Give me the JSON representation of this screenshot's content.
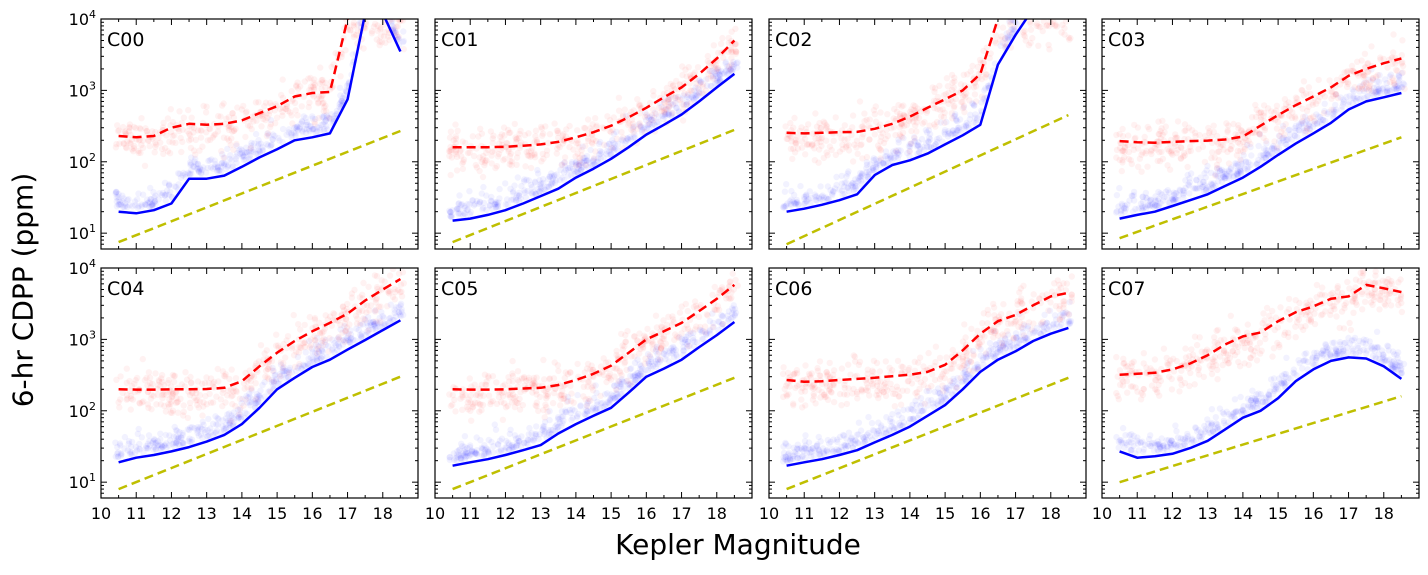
{
  "figure": {
    "ylabel": "6-hr CDPP (ppm)",
    "xlabel": "Kepler Magnitude"
  },
  "colors": {
    "median_line": "#0000ff",
    "upper_line": "#ff0000",
    "reference_line": "#bfbf00",
    "low_scatter": "#0000ff",
    "high_scatter": "#ff0000"
  },
  "chart_data": [
    {
      "type": "line",
      "title": "C00",
      "xlim": [
        10,
        19
      ],
      "ylim": [
        6,
        10000
      ],
      "yscale": "log",
      "xticks": [
        "10",
        "11",
        "12",
        "13",
        "14",
        "15",
        "16",
        "17",
        "18"
      ],
      "yticks": [
        "10^1",
        "10^2",
        "10^3",
        "10^4"
      ],
      "series": [
        {
          "style": "solid-blue",
          "x": [
            10.5,
            11,
            11.5,
            12,
            12.5,
            13,
            13.5,
            14,
            14.5,
            15,
            15.5,
            16,
            16.5,
            17,
            17.5,
            18,
            18.5
          ],
          "y": [
            20,
            19,
            21,
            26,
            58,
            58,
            64,
            85,
            115,
            150,
            200,
            220,
            250,
            750,
            12000,
            12000,
            3500
          ]
        },
        {
          "style": "dashed-red",
          "x": [
            10.5,
            11,
            11.5,
            12,
            12.5,
            13,
            13.5,
            14,
            14.5,
            15,
            15.5,
            16,
            16.5,
            17
          ],
          "y": [
            230,
            220,
            230,
            300,
            340,
            330,
            340,
            380,
            480,
            600,
            820,
            920,
            950,
            10000
          ]
        },
        {
          "style": "dashed-yellow",
          "x": [
            10.5,
            18.5
          ],
          "y": [
            7.5,
            270
          ]
        }
      ]
    },
    {
      "type": "line",
      "title": "C01",
      "xlim": [
        10,
        19
      ],
      "ylim": [
        6,
        10000
      ],
      "yscale": "log",
      "xticks": [
        "10",
        "11",
        "12",
        "13",
        "14",
        "15",
        "16",
        "17",
        "18"
      ],
      "yticks": [
        "10^1",
        "10^2",
        "10^3",
        "10^4"
      ],
      "series": [
        {
          "style": "solid-blue",
          "x": [
            10.5,
            11,
            11.5,
            12,
            12.5,
            13,
            13.5,
            14,
            14.5,
            15,
            15.5,
            16,
            16.5,
            17,
            17.5,
            18,
            18.5
          ],
          "y": [
            15,
            16,
            18,
            21,
            26,
            33,
            42,
            60,
            80,
            110,
            160,
            240,
            330,
            460,
            700,
            1100,
            1700
          ]
        },
        {
          "style": "dashed-red",
          "x": [
            10.5,
            11,
            11.5,
            12,
            12.5,
            13,
            13.5,
            14,
            14.5,
            15,
            15.5,
            16,
            16.5,
            17,
            17.5,
            18,
            18.5
          ],
          "y": [
            160,
            160,
            160,
            162,
            168,
            175,
            190,
            220,
            260,
            320,
            420,
            570,
            800,
            1100,
            1700,
            2800,
            5000
          ]
        },
        {
          "style": "dashed-yellow",
          "x": [
            10.5,
            18.5
          ],
          "y": [
            7.5,
            280
          ]
        }
      ]
    },
    {
      "type": "line",
      "title": "C02",
      "xlim": [
        10,
        19
      ],
      "ylim": [
        6,
        10000
      ],
      "yscale": "log",
      "xticks": [
        "10",
        "11",
        "12",
        "13",
        "14",
        "15",
        "16",
        "17",
        "18"
      ],
      "yticks": [
        "10^1",
        "10^2",
        "10^3",
        "10^4"
      ],
      "series": [
        {
          "style": "solid-blue",
          "x": [
            10.5,
            11,
            11.5,
            12,
            12.5,
            13,
            13.5,
            14,
            14.5,
            15,
            15.5,
            16,
            16.5,
            17,
            17.5
          ],
          "y": [
            20,
            22,
            25,
            29,
            35,
            65,
            90,
            105,
            130,
            175,
            235,
            330,
            2300,
            6000,
            14000
          ]
        },
        {
          "style": "dashed-red",
          "x": [
            10.5,
            11,
            11.5,
            12,
            12.5,
            13,
            13.5,
            14,
            14.5,
            15,
            15.5,
            16,
            16.5
          ],
          "y": [
            255,
            250,
            255,
            260,
            262,
            290,
            340,
            430,
            570,
            750,
            1000,
            1700,
            10000
          ]
        },
        {
          "style": "dashed-yellow",
          "x": [
            10.5,
            18.5
          ],
          "y": [
            7,
            450
          ]
        }
      ]
    },
    {
      "type": "line",
      "title": "C03",
      "xlim": [
        10,
        19
      ],
      "ylim": [
        6,
        10000
      ],
      "yscale": "log",
      "xticks": [
        "10",
        "11",
        "12",
        "13",
        "14",
        "15",
        "16",
        "17",
        "18"
      ],
      "yticks": [
        "10^1",
        "10^2",
        "10^3",
        "10^4"
      ],
      "series": [
        {
          "style": "solid-blue",
          "x": [
            10.5,
            11,
            11.5,
            12,
            12.5,
            13,
            13.5,
            14,
            14.5,
            15,
            15.5,
            16,
            16.5,
            17,
            17.5,
            18,
            18.5
          ],
          "y": [
            16,
            18,
            20,
            24,
            29,
            35,
            46,
            60,
            85,
            125,
            180,
            250,
            350,
            540,
            700,
            800,
            920
          ]
        },
        {
          "style": "dashed-red",
          "x": [
            10.5,
            11,
            11.5,
            12,
            12.5,
            13,
            13.5,
            14,
            14.5,
            15,
            15.5,
            16,
            16.5,
            17,
            17.5,
            18,
            18.5
          ],
          "y": [
            195,
            188,
            185,
            190,
            195,
            198,
            205,
            225,
            320,
            450,
            620,
            820,
            1100,
            1600,
            2000,
            2400,
            2800
          ]
        },
        {
          "style": "dashed-yellow",
          "x": [
            10.5,
            18.5
          ],
          "y": [
            8.5,
            220
          ]
        }
      ]
    },
    {
      "type": "line",
      "title": "C04",
      "xlim": [
        10,
        19
      ],
      "ylim": [
        6,
        10000
      ],
      "yscale": "log",
      "xticks": [
        "10",
        "11",
        "12",
        "13",
        "14",
        "15",
        "16",
        "17",
        "18"
      ],
      "yticks": [
        "10^1",
        "10^2",
        "10^3",
        "10^4"
      ],
      "series": [
        {
          "style": "solid-blue",
          "x": [
            10.5,
            11,
            11.5,
            12,
            12.5,
            13,
            13.5,
            14,
            14.5,
            15,
            15.5,
            16,
            16.5,
            17,
            17.5,
            18,
            18.5
          ],
          "y": [
            19,
            22,
            24,
            27,
            31,
            37,
            46,
            65,
            110,
            200,
            290,
            410,
            520,
            720,
            980,
            1350,
            1850
          ]
        },
        {
          "style": "dashed-red",
          "x": [
            10.5,
            11,
            11.5,
            12,
            12.5,
            13,
            13.5,
            14,
            14.5,
            15,
            15.5,
            16,
            16.5,
            17,
            17.5,
            18,
            18.5
          ],
          "y": [
            200,
            198,
            198,
            200,
            200,
            202,
            210,
            260,
            420,
            650,
            950,
            1300,
            1700,
            2300,
            3500,
            5000,
            7000
          ]
        },
        {
          "style": "dashed-yellow",
          "x": [
            10.5,
            18.5
          ],
          "y": [
            8,
            300
          ]
        }
      ]
    },
    {
      "type": "line",
      "title": "C05",
      "xlim": [
        10,
        19
      ],
      "ylim": [
        6,
        10000
      ],
      "yscale": "log",
      "xticks": [
        "10",
        "11",
        "12",
        "13",
        "14",
        "15",
        "16",
        "17",
        "18"
      ],
      "yticks": [
        "10^1",
        "10^2",
        "10^3",
        "10^4"
      ],
      "series": [
        {
          "style": "solid-blue",
          "x": [
            10.5,
            11,
            11.5,
            12,
            12.5,
            13,
            13.5,
            14,
            14.5,
            15,
            15.5,
            16,
            16.5,
            17,
            17.5,
            18,
            18.5
          ],
          "y": [
            17,
            19,
            21,
            24,
            28,
            33,
            48,
            65,
            85,
            110,
            180,
            300,
            390,
            520,
            780,
            1150,
            1750
          ]
        },
        {
          "style": "dashed-red",
          "x": [
            10.5,
            11,
            11.5,
            12,
            12.5,
            13,
            13.5,
            14,
            14.5,
            15,
            15.5,
            16,
            16.5,
            17,
            17.5,
            18,
            18.5
          ],
          "y": [
            200,
            198,
            198,
            200,
            205,
            210,
            230,
            270,
            330,
            430,
            650,
            1000,
            1300,
            1700,
            2500,
            3700,
            5800
          ]
        },
        {
          "style": "dashed-yellow",
          "x": [
            10.5,
            18.5
          ],
          "y": [
            8,
            290
          ]
        }
      ]
    },
    {
      "type": "line",
      "title": "C06",
      "xlim": [
        10,
        19
      ],
      "ylim": [
        6,
        10000
      ],
      "yscale": "log",
      "xticks": [
        "10",
        "11",
        "12",
        "13",
        "14",
        "15",
        "16",
        "17",
        "18"
      ],
      "yticks": [
        "10^1",
        "10^2",
        "10^3",
        "10^4"
      ],
      "series": [
        {
          "style": "solid-blue",
          "x": [
            10.5,
            11,
            11.5,
            12,
            12.5,
            13,
            13.5,
            14,
            14.5,
            15,
            15.5,
            16,
            16.5,
            17,
            17.5,
            18,
            18.5
          ],
          "y": [
            17,
            19,
            21,
            24,
            28,
            36,
            46,
            60,
            85,
            120,
            200,
            350,
            520,
            680,
            950,
            1200,
            1450
          ]
        },
        {
          "style": "dashed-red",
          "x": [
            10.5,
            11,
            11.5,
            12,
            12.5,
            13,
            13.5,
            14,
            14.5,
            15,
            15.5,
            16,
            16.5,
            17,
            17.5,
            18,
            18.5
          ],
          "y": [
            270,
            255,
            260,
            270,
            280,
            290,
            305,
            320,
            350,
            440,
            700,
            1200,
            1800,
            2200,
            3000,
            4000,
            4500
          ]
        },
        {
          "style": "dashed-yellow",
          "x": [
            10.5,
            18.5
          ],
          "y": [
            8,
            290
          ]
        }
      ]
    },
    {
      "type": "line",
      "title": "C07",
      "xlim": [
        10,
        19
      ],
      "ylim": [
        6,
        10000
      ],
      "yscale": "log",
      "xticks": [
        "10",
        "11",
        "12",
        "13",
        "14",
        "15",
        "16",
        "17",
        "18"
      ],
      "yticks": [
        "10^1",
        "10^2",
        "10^3",
        "10^4"
      ],
      "series": [
        {
          "style": "solid-blue",
          "x": [
            10.5,
            11,
            11.5,
            12,
            12.5,
            13,
            13.5,
            14,
            14.5,
            15,
            15.5,
            16,
            16.5,
            17,
            17.5,
            18,
            18.5
          ],
          "y": [
            27,
            22,
            23,
            25,
            30,
            38,
            55,
            80,
            100,
            150,
            260,
            380,
            500,
            560,
            540,
            420,
            280
          ]
        },
        {
          "style": "dashed-red",
          "x": [
            10.5,
            11,
            11.5,
            12,
            12.5,
            13,
            13.5,
            14,
            14.5,
            15,
            15.5,
            16,
            16.5,
            17,
            17.5,
            18,
            18.5
          ],
          "y": [
            320,
            330,
            340,
            380,
            460,
            600,
            850,
            1100,
            1250,
            1800,
            2400,
            2900,
            3700,
            4000,
            5800,
            5200,
            4600
          ]
        },
        {
          "style": "dashed-yellow",
          "x": [
            10.5,
            18.5
          ],
          "y": [
            10,
            160
          ]
        }
      ]
    }
  ]
}
